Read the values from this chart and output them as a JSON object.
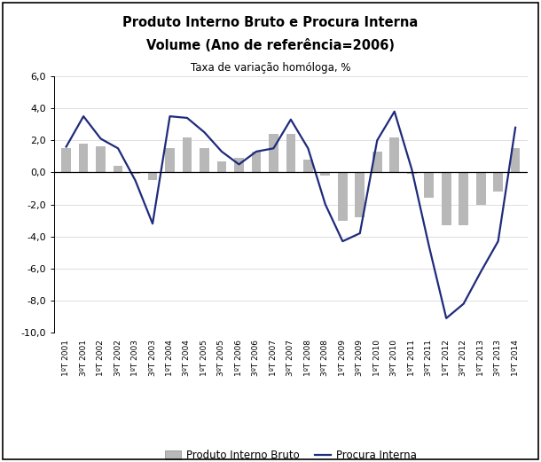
{
  "title_line1": "Produto Interno Bruto e Procura Interna",
  "title_line2": "Volume (Ano de referência=2006)",
  "subtitle": "Taxa de variação homóloga, %",
  "labels": [
    "1ºT 2001",
    "3ºT 2001",
    "1ºT 2002",
    "3ºT 2002",
    "1ºT 2003",
    "3ºT 2003",
    "1ºT 2004",
    "3ºT 2004",
    "1ºT 2005",
    "3ºT 2005",
    "1ºT 2006",
    "3ºT 2006",
    "1ºT 2007",
    "3ºT 2007",
    "1ºT 2008",
    "3ºT 2008",
    "1ºT 2009",
    "3ºT 2009",
    "1ºT 2010",
    "3ºT 2010",
    "1ºT 2011",
    "3ºT 2011",
    "1ºT 2012",
    "3ºT 2012",
    "1ºT 2013",
    "3ºT 2013",
    "1ºT 2014"
  ],
  "pib": [
    1.5,
    1.8,
    1.6,
    0.4,
    -0.1,
    -0.5,
    1.5,
    2.2,
    1.5,
    0.7,
    0.9,
    1.3,
    2.4,
    2.4,
    0.8,
    -0.2,
    -3.0,
    -2.8,
    1.3,
    2.2,
    -0.1,
    -1.6,
    -3.3,
    -3.3,
    -2.0,
    -1.2,
    1.5
  ],
  "procura": [
    1.6,
    3.5,
    2.1,
    1.5,
    -0.5,
    -3.2,
    3.5,
    3.4,
    2.5,
    1.3,
    0.5,
    1.3,
    1.5,
    3.3,
    1.5,
    -2.0,
    -4.3,
    -3.8,
    2.0,
    3.8,
    0.2,
    -4.6,
    -9.1,
    -8.2,
    -6.2,
    -4.3,
    2.8
  ],
  "bar_color": "#b8b8b8",
  "line_color": "#1f2b7b",
  "ylim": [
    -10.0,
    6.0
  ],
  "yticks": [
    -10.0,
    -8.0,
    -6.0,
    -4.0,
    -2.0,
    0.0,
    2.0,
    4.0,
    6.0
  ],
  "background_color": "#ffffff",
  "legend_bar_label": "Produto Interno Bruto",
  "legend_line_label": "Procura Interna"
}
